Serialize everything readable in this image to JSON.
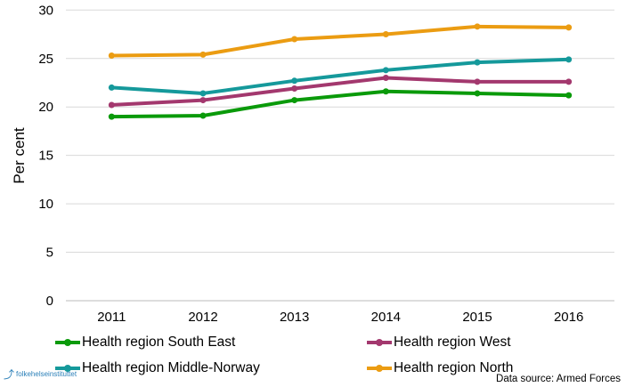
{
  "chart_data": {
    "type": "line",
    "categories": [
      "2011",
      "2012",
      "2013",
      "2014",
      "2015",
      "2016"
    ],
    "ylabel": "Per cent",
    "ylim": [
      0,
      30
    ],
    "yticks": [
      0,
      5,
      10,
      15,
      20,
      25,
      30
    ],
    "grid": true,
    "legend_position": "bottom",
    "series": [
      {
        "name": "Health region South East",
        "color": "#0a9a0a",
        "values": [
          19.0,
          19.1,
          20.7,
          21.6,
          21.4,
          21.2
        ]
      },
      {
        "name": "Health region West",
        "color": "#a3386e",
        "values": [
          20.2,
          20.7,
          21.9,
          23.0,
          22.6,
          22.6
        ]
      },
      {
        "name": "Health region Middle-Norway",
        "color": "#15999b",
        "values": [
          22.0,
          21.4,
          22.7,
          23.8,
          24.6,
          24.9
        ]
      },
      {
        "name": "Health region North",
        "color": "#eb9c12",
        "values": [
          25.3,
          25.4,
          27.0,
          27.5,
          28.3,
          28.2
        ]
      }
    ]
  },
  "source": "Data source: Armed Forces",
  "logo_text": "folkehelseinstituttet"
}
